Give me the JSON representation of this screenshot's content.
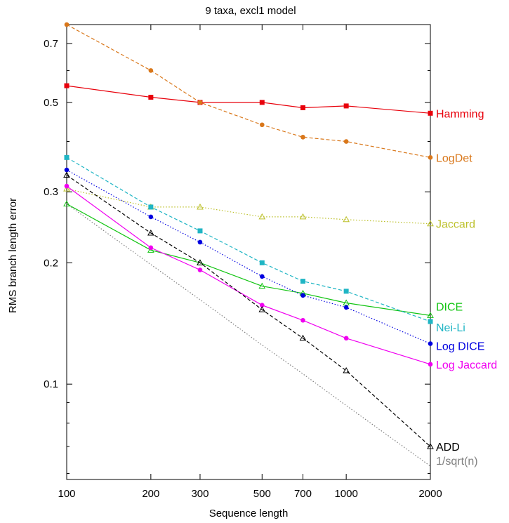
{
  "chart_data": {
    "type": "line",
    "title": "9 taxa, excl1 model",
    "xlabel": "Sequence length",
    "ylabel": "RMS branch length error",
    "x_scale": "log",
    "y_scale": "log",
    "xlim": [
      100,
      2000
    ],
    "ylim": [
      0.058,
      0.78
    ],
    "x_ticks": [
      100,
      200,
      300,
      500,
      700,
      1000,
      2000
    ],
    "x_tick_labels": [
      "100",
      "200",
      "300",
      "500",
      "700",
      "1000",
      "2000"
    ],
    "y_ticks": [
      0.1,
      0.2,
      0.3,
      0.5,
      0.7
    ],
    "y_tick_labels": [
      "0.1",
      "0.2",
      "0.3",
      "0.5",
      "0.7"
    ],
    "grid": false,
    "legend": "series labels at right end of lines",
    "x": [
      100,
      200,
      300,
      500,
      700,
      1000,
      2000
    ],
    "series": [
      {
        "name": "Hamming",
        "color": "#e8000b",
        "dash": "solid",
        "marker": "square",
        "values": [
          0.55,
          0.515,
          0.5,
          0.5,
          0.485,
          0.49,
          0.47
        ]
      },
      {
        "name": "LogDet",
        "color": "#d9771a",
        "dash": "dashed",
        "marker": "circle",
        "values": [
          0.78,
          0.6,
          0.5,
          0.44,
          0.41,
          0.4,
          0.365
        ]
      },
      {
        "name": "Jaccard",
        "color": "#bcc02a",
        "dash": "dotted",
        "marker": "triangle",
        "values": [
          0.305,
          0.275,
          0.275,
          0.26,
          0.26,
          0.256,
          0.25
        ]
      },
      {
        "name": "DICE",
        "color": "#11c411",
        "dash": "solid",
        "marker": "triangle",
        "values": [
          0.28,
          0.215,
          0.2,
          0.175,
          0.168,
          0.159,
          0.148
        ]
      },
      {
        "name": "Nei-Li",
        "color": "#1fb5c4",
        "dash": "dashed",
        "marker": "square",
        "values": [
          0.365,
          0.275,
          0.24,
          0.2,
          0.18,
          0.17,
          0.143
        ]
      },
      {
        "name": "Log DICE",
        "color": "#0000e0",
        "dash": "dotted",
        "marker": "circle",
        "values": [
          0.34,
          0.26,
          0.225,
          0.185,
          0.166,
          0.155,
          0.126
        ]
      },
      {
        "name": "Log Jaccard",
        "color": "#f000f0",
        "dash": "solid",
        "marker": "circle",
        "values": [
          0.31,
          0.218,
          0.192,
          0.157,
          0.144,
          0.13,
          0.112
        ]
      },
      {
        "name": "ADD",
        "color": "#000000",
        "dash": "dashed",
        "marker": "triangle",
        "values": [
          0.33,
          0.237,
          0.2,
          0.153,
          0.13,
          0.108,
          0.07
        ]
      },
      {
        "name": "1/sqrt(n)",
        "color": "#808080",
        "dash": "dotted",
        "marker": "none",
        "values": [
          0.28,
          0.198,
          0.162,
          0.125,
          0.106,
          0.0885,
          0.0626
        ]
      }
    ]
  }
}
